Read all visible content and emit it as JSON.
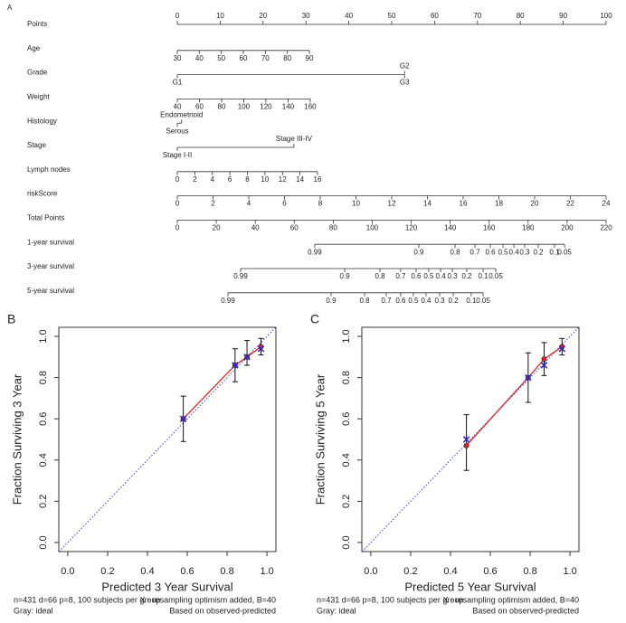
{
  "chart_data": [
    {
      "type": "nomogram",
      "panel": "A",
      "points": {
        "label": "Points",
        "lim": [
          0,
          100
        ],
        "ticks": [
          0,
          10,
          20,
          30,
          40,
          50,
          60,
          70,
          80,
          90,
          100
        ]
      },
      "variables": [
        {
          "label": "Age",
          "ticks": [
            30,
            40,
            50,
            60,
            70,
            80,
            90
          ],
          "lim": [
            30,
            90
          ],
          "points": [
            0,
            30.8
          ]
        },
        {
          "label": "Grade",
          "levels": [
            "G1",
            "G2",
            "G3"
          ],
          "points": [
            0,
            53,
            53
          ]
        },
        {
          "label": "Weight",
          "ticks": [
            40,
            60,
            80,
            100,
            120,
            140,
            160
          ],
          "lim": [
            40,
            160
          ],
          "points": [
            0,
            31
          ]
        },
        {
          "label": "Histology",
          "levels": [
            "Serous",
            "Endometrioid"
          ],
          "points": [
            0,
            1
          ]
        },
        {
          "label": "Stage",
          "levels": [
            "Stage I-II",
            "Stage III-IV"
          ],
          "points": [
            0,
            27.2
          ]
        },
        {
          "label": "Lymph nodes",
          "ticks": [
            0,
            2,
            4,
            6,
            8,
            10,
            12,
            14,
            16
          ],
          "lim": [
            0,
            16
          ],
          "points": [
            0,
            32.7
          ]
        },
        {
          "label": "riskScore",
          "ticks": [
            0,
            2,
            4,
            6,
            8,
            10,
            12,
            14,
            16,
            18,
            20,
            22,
            24
          ],
          "lim": [
            0,
            24
          ],
          "points": [
            0,
            100
          ]
        }
      ],
      "total_points": {
        "label": "Total Points",
        "lim": [
          0,
          220
        ],
        "ticks": [
          0,
          20,
          40,
          60,
          80,
          100,
          120,
          140,
          160,
          180,
          200,
          220
        ]
      },
      "survival": [
        {
          "label": "1-year survival",
          "ticks": [
            0.99,
            0.9,
            0.8,
            0.7,
            0.6,
            0.5,
            0.4,
            0.3,
            0.2,
            0.1,
            0.05
          ],
          "total_points": [
            70.5,
            123.9,
            142.5,
            152.7,
            160.6,
            167.1,
            172.7,
            178.2,
            185.2,
            193.5,
            198.7
          ]
        },
        {
          "label": "3-year survival",
          "ticks": [
            0.99,
            0.9,
            0.8,
            0.7,
            0.6,
            0.5,
            0.4,
            0.3,
            0.2,
            0.1,
            0.05
          ],
          "total_points": [
            32.5,
            85.9,
            104.0,
            114.6,
            122.5,
            129.0,
            135.1,
            141.1,
            148.5,
            156.9,
            163.4
          ]
        },
        {
          "label": "5-year survival",
          "ticks": [
            0.99,
            0.9,
            0.8,
            0.7,
            0.6,
            0.5,
            0.4,
            0.3,
            0.2,
            0.1,
            0.05
          ],
          "total_points": [
            26.0,
            78.9,
            96.1,
            107.2,
            114.6,
            121.1,
            127.6,
            134.6,
            141.6,
            150.8,
            156.9
          ]
        }
      ]
    },
    {
      "type": "calibration",
      "panel": "B",
      "xlabel": "Predicted  3 Year Survival",
      "ylabel": "Fraction Surviving 3 Year",
      "xlim": [
        -0.045,
        1.045
      ],
      "ylim": [
        -0.044,
        1.044
      ],
      "xticks": [
        {
          "value": 0,
          "label": "0.0"
        },
        0.2,
        0.4,
        0.6,
        0.8,
        {
          "value": 1,
          "label": "1.0"
        }
      ],
      "yticks": [
        {
          "value": 0,
          "label": "0.0"
        },
        0.2,
        0.4,
        0.6,
        0.8,
        {
          "value": 1,
          "label": "1.0"
        }
      ],
      "ideal_color": "#3a3aff",
      "observed": {
        "color": "#e0261d",
        "x": [
          0.58,
          0.84,
          0.9,
          0.97
        ],
        "values": [
          0.6,
          0.86,
          0.9,
          0.95
        ],
        "lower": [
          0.49,
          0.78,
          0.86,
          0.91
        ],
        "upper": [
          0.71,
          0.94,
          0.98,
          0.99
        ]
      },
      "corrected": {
        "color": "#2a2ac8",
        "x": [
          0.58,
          0.84,
          0.9,
          0.97
        ],
        "values": [
          0.6,
          0.86,
          0.9,
          0.94
        ]
      },
      "notes": [
        "n=431 d=66 p=8, 100 subjects per group",
        "Gray: ideal",
        "X - resampling optimism added, B=40",
        "Based on observed-predicted"
      ]
    },
    {
      "type": "calibration",
      "panel": "C",
      "xlabel": "Predicted  5 Year Survival",
      "ylabel": "Fraction Surviving 5 Year",
      "xlim": [
        -0.045,
        1.045
      ],
      "ylim": [
        -0.044,
        1.044
      ],
      "xticks": [
        {
          "value": 0,
          "label": "0.0"
        },
        0.2,
        0.4,
        0.6,
        0.8,
        {
          "value": 1,
          "label": "1.0"
        }
      ],
      "yticks": [
        {
          "value": 0,
          "label": "0.0"
        },
        0.2,
        0.4,
        0.6,
        0.8,
        {
          "value": 1,
          "label": "1.0"
        }
      ],
      "ideal_color": "#3a3aff",
      "observed": {
        "color": "#e0261d",
        "x": [
          0.48,
          0.79,
          0.87,
          0.96
        ],
        "values": [
          0.47,
          0.8,
          0.89,
          0.95
        ],
        "lower": [
          0.35,
          0.68,
          0.81,
          0.91
        ],
        "upper": [
          0.62,
          0.92,
          0.97,
          0.99
        ]
      },
      "corrected": {
        "color": "#2a2ac8",
        "x": [
          0.48,
          0.79,
          0.87,
          0.96
        ],
        "values": [
          0.5,
          0.8,
          0.86,
          0.94
        ]
      },
      "notes": [
        "n=431 d=66 p=8, 100 subjects per group",
        "Gray: ideal",
        "X - resampling optimism added, B=40",
        "Based on observed-predicted"
      ]
    }
  ]
}
